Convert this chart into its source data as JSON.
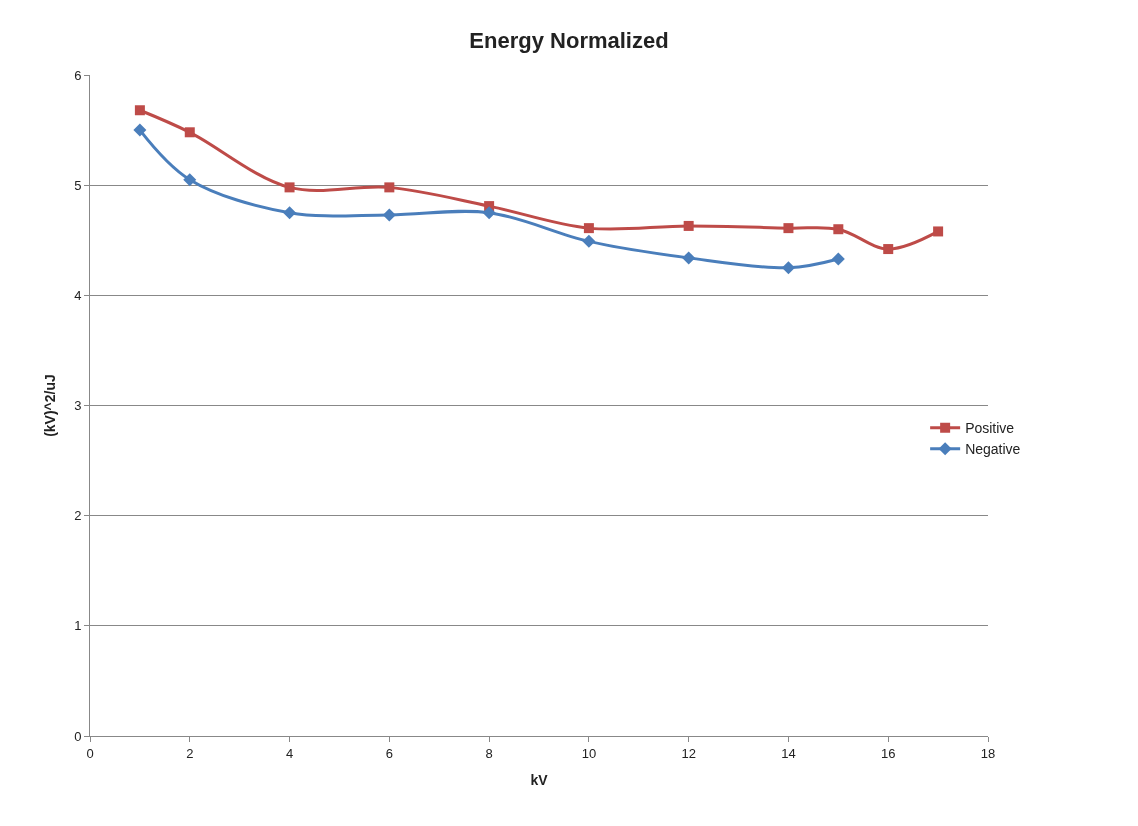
{
  "chart_data": {
    "type": "line",
    "title": "Energy Normalized",
    "xlabel": "kV",
    "ylabel": "(kV)^2/uJ",
    "xlim": [
      0,
      18
    ],
    "xticks": [
      0,
      2,
      4,
      6,
      8,
      10,
      12,
      14,
      16,
      18
    ],
    "ylim": [
      0,
      6
    ],
    "yticks": [
      0,
      1,
      2,
      3,
      4,
      5,
      6
    ],
    "grid": "y",
    "legend": "right",
    "series": [
      {
        "name": "Positive",
        "color": "#be4b48",
        "marker": "square",
        "x": [
          1,
          2,
          4,
          6,
          8,
          10,
          12,
          14,
          15,
          16,
          17
        ],
        "values": [
          5.68,
          5.48,
          4.98,
          4.98,
          4.81,
          4.61,
          4.63,
          4.61,
          4.6,
          4.42,
          4.58
        ]
      },
      {
        "name": "Negative",
        "color": "#4a7ebb",
        "marker": "diamond",
        "x": [
          1,
          2,
          4,
          6,
          8,
          10,
          12,
          14,
          15
        ],
        "values": [
          5.5,
          5.05,
          4.75,
          4.73,
          4.75,
          4.49,
          4.34,
          4.25,
          4.33
        ]
      }
    ]
  }
}
